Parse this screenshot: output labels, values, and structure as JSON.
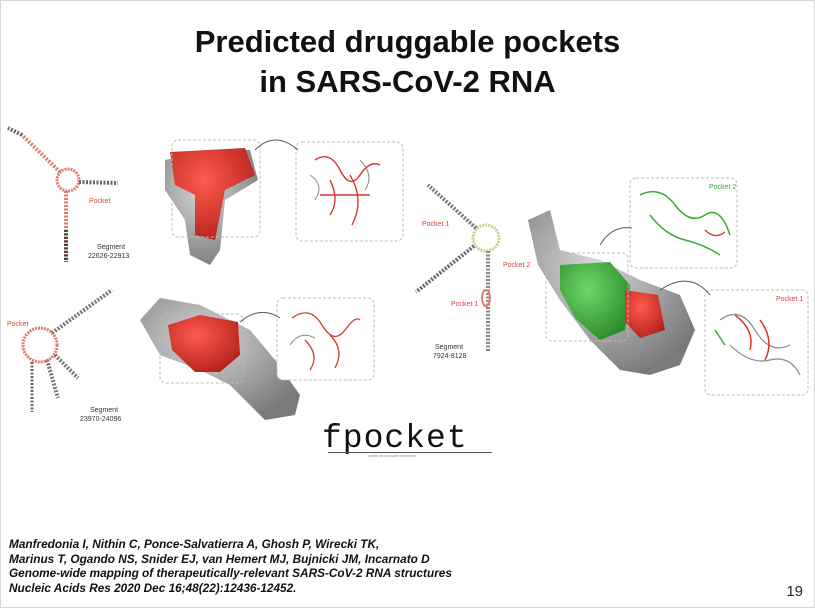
{
  "title": {
    "line1": "Predicted druggable pockets",
    "line2": "in SARS-CoV-2 RNA"
  },
  "panels": {
    "structure_a": {
      "pocket_label": "Pocket",
      "segment_label": "Segment",
      "segment_range": "22626-22913"
    },
    "structure_b": {
      "pocket_label": "Pocket",
      "segment_label": "Segment",
      "segment_range": "23970-24096"
    },
    "structure_c": {
      "pocket1_label": "Pocket 1",
      "pocket2_label": "Pocket 2",
      "pocket1_lower_label": "Pocket 1",
      "segment_label": "Segment",
      "segment_range": "7924-8128"
    },
    "zoom_labels": {
      "pocket2": "Pocket 2",
      "pocket1": "Pocket 1"
    }
  },
  "logo": {
    "text": "fpocket",
    "subtitle": "cavity and pocket detection"
  },
  "citation": {
    "line1": "Manfredonia I, Nithin C, Ponce-Salvatierra A, Ghosh P, Wirecki TK,",
    "line2": "Marinus T, Ogando NS, Snider EJ, van Hemert MJ, Bujnicki JM, Incarnato D",
    "line3": "Genome-wide mapping of therapeutically-relevant SARS-CoV-2 RNA structures",
    "line4": "Nucleic Acids Res 2020 Dec 16;48(22):12436-12452."
  },
  "page_number": "19",
  "colors": {
    "pocket_red": "#d9372f",
    "pocket_green": "#3daa3a",
    "rna_grey": "#9a9a9a"
  }
}
